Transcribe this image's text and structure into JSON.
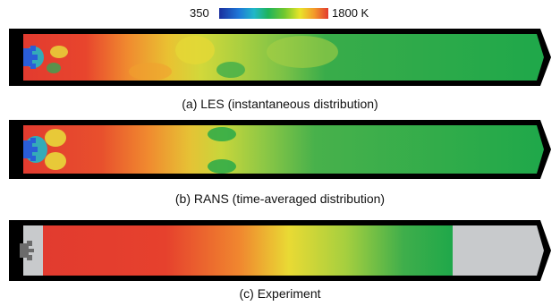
{
  "colorbar": {
    "min_label": "350",
    "max_label": "1800 K",
    "stops": [
      "#1a2f9e",
      "#1e78d8",
      "#20b7c8",
      "#1fb45a",
      "#73c82e",
      "#e9e42a",
      "#f39a2a",
      "#e23b2f"
    ]
  },
  "panels": [
    {
      "caption": "(a) LES (instantaneous distribution)",
      "fill_style": "les"
    },
    {
      "caption": "(b) RANS (time-averaged distribution)",
      "fill_style": "rans"
    },
    {
      "caption": "(c) Experiment",
      "fill_style": "experiment"
    }
  ],
  "colors": {
    "frame": "#000000",
    "hot": "#e23b2f",
    "orange": "#f08a2f",
    "yellow": "#e6df36",
    "green": "#1fa84a",
    "cold": "#2a5ed8",
    "unmeasured": "#c8cacc"
  }
}
